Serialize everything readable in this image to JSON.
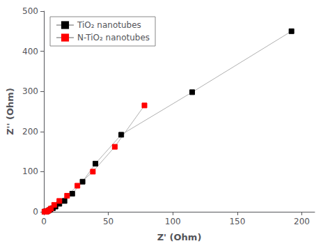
{
  "chart_data": {
    "type": "line",
    "xlabel": "Z' (Ohm)",
    "ylabel": "Z'' (Ohm)",
    "series": [
      {
        "name": "TiO₂ nanotubes",
        "color": "#000000",
        "marker": "square",
        "x": [
          0.5,
          1.0,
          1.5,
          2.0,
          2.5,
          3.0,
          4.0,
          5.0,
          7.0,
          9.0,
          12.0,
          16.0,
          22.0,
          30.0,
          40.0,
          60.0,
          115.0,
          192.0
        ],
        "values": [
          0.2,
          0.3,
          0.5,
          0.8,
          1.2,
          2.0,
          3.5,
          5.5,
          9.0,
          13.0,
          20.0,
          27.0,
          45.0,
          75.0,
          120.0,
          192.0,
          298.0,
          450.0
        ]
      },
      {
        "name": "N-TiO₂ nanotubes",
        "color": "#ff0000",
        "marker": "square",
        "x": [
          0.5,
          1.0,
          1.5,
          2.0,
          2.5,
          3.0,
          4.0,
          5.5,
          8.0,
          12.0,
          18.0,
          26.0,
          38.0,
          55.0,
          78.0
        ],
        "values": [
          0.2,
          0.3,
          0.5,
          0.8,
          1.2,
          2.0,
          4.0,
          8.0,
          17.0,
          27.0,
          40.0,
          65.0,
          100.0,
          162.0,
          265.0
        ]
      }
    ],
    "xlim": [
      0,
      210
    ],
    "ylim": [
      0,
      500
    ],
    "xticks": [
      0,
      50,
      100,
      150,
      200
    ],
    "yticks": [
      0,
      100,
      200,
      300,
      400,
      500
    ],
    "grid": false,
    "legend": "upper left"
  }
}
